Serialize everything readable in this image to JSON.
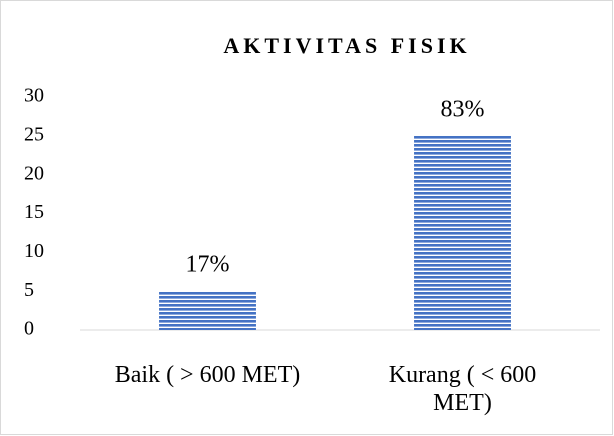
{
  "chart_data": {
    "type": "bar",
    "title": "AKTIVITAS FISIK",
    "categories": [
      "Baik ( > 600 MET)",
      "Kurang ( < 600 MET)"
    ],
    "values": [
      5,
      25
    ],
    "value_labels": [
      "17%",
      "83%"
    ],
    "color": "#4472c4",
    "ylim": [
      0,
      30
    ],
    "yticks": [
      0,
      5,
      10,
      15,
      20,
      25,
      30
    ],
    "grid": false
  }
}
